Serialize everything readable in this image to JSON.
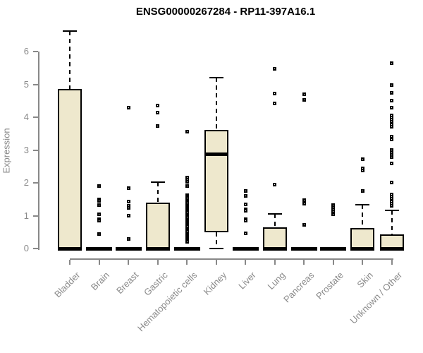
{
  "title": "ENSG00000267284 - RP11-397A16.1",
  "chart_data": {
    "type": "box",
    "title": "ENSG00000267284 - RP11-397A16.1",
    "xlabel": "",
    "ylabel": "Expression",
    "ylim": [
      0,
      6.8
    ],
    "yticks": [
      0,
      1,
      2,
      3,
      4,
      5,
      6
    ],
    "grid": false,
    "legend": "none",
    "box_fill_color": "#EEE8CD",
    "box_stroke_color": "#000000",
    "axis_color": "#888888",
    "tick_label_color": "#8a8a8a",
    "categories": [
      "Bladder",
      "Brain",
      "Breast",
      "Gastric",
      "Hematopoietic cells",
      "Kidney",
      "Liver",
      "Lung",
      "Pancreas",
      "Prostate",
      "Skin",
      "Unknown / Other"
    ],
    "series": [
      {
        "name": "Bladder",
        "q1": 0,
        "median": 0,
        "q3": 4.85,
        "whisker_low": 0,
        "whisker_high": 6.62,
        "outliers": []
      },
      {
        "name": "Brain",
        "q1": 0,
        "median": 0,
        "q3": 0,
        "whisker_low": 0,
        "whisker_high": 0,
        "outliers": [
          1.9,
          1.5,
          1.45,
          1.33,
          1.05,
          0.9,
          0.86,
          0.45
        ]
      },
      {
        "name": "Breast",
        "q1": 0,
        "median": 0,
        "q3": 0,
        "whisker_low": 0,
        "whisker_high": 0,
        "outliers": [
          4.3,
          1.83,
          1.44,
          1.31,
          1.23,
          1.01,
          0.3
        ]
      },
      {
        "name": "Gastric",
        "q1": 0,
        "median": 0,
        "q3": 1.4,
        "whisker_low": 0,
        "whisker_high": 2.02,
        "outliers": [
          4.36,
          4.15,
          3.74
        ]
      },
      {
        "name": "Hematopoietic cells",
        "q1": 0,
        "median": 0,
        "q3": 0,
        "whisker_low": 0,
        "whisker_high": 0,
        "outliers": [
          3.55,
          2.16,
          2.1,
          2.04,
          1.9,
          1.62,
          1.57,
          1.53,
          1.48,
          1.43,
          1.38,
          1.33,
          1.29,
          1.24,
          1.19,
          1.14,
          1.1,
          1.05,
          1.0,
          0.95,
          0.9,
          0.86,
          0.81,
          0.76,
          0.71,
          0.67,
          0.62,
          0.57,
          0.52,
          0.47,
          0.43,
          0.38,
          0.33,
          0.28,
          0.24,
          0.2
        ]
      },
      {
        "name": "Kidney",
        "q1": 0.5,
        "median": 2.88,
        "q3": 3.62,
        "whisker_low": 0,
        "whisker_high": 5.2,
        "outliers": []
      },
      {
        "name": "Liver",
        "q1": 0,
        "median": 0,
        "q3": 0,
        "whisker_low": 0,
        "whisker_high": 0,
        "outliers": [
          1.76,
          1.6,
          1.35,
          1.2,
          1.14,
          0.9,
          0.85,
          0.47
        ]
      },
      {
        "name": "Lung",
        "q1": 0,
        "median": 0,
        "q3": 0.65,
        "whisker_low": 0,
        "whisker_high": 1.05,
        "outliers": [
          5.48,
          4.72,
          4.42,
          1.95
        ]
      },
      {
        "name": "Pancreas",
        "q1": 0,
        "median": 0,
        "q3": 0,
        "whisker_low": 0,
        "whisker_high": 0,
        "outliers": [
          4.7,
          4.53,
          1.48,
          1.37,
          0.73
        ]
      },
      {
        "name": "Prostate",
        "q1": 0,
        "median": 0,
        "q3": 0,
        "whisker_low": 0,
        "whisker_high": 0,
        "outliers": [
          1.33,
          1.26,
          1.19,
          1.12,
          1.04
        ]
      },
      {
        "name": "Skin",
        "q1": 0,
        "median": 0,
        "q3": 0.63,
        "whisker_low": 0,
        "whisker_high": 1.33,
        "outliers": [
          2.73,
          2.45,
          2.38,
          1.76
        ]
      },
      {
        "name": "Unknown / Other",
        "q1": 0,
        "median": 0,
        "q3": 0.44,
        "whisker_low": 0,
        "whisker_high": 1.17,
        "outliers": [
          5.65,
          4.98,
          4.75,
          4.51,
          4.3,
          4.06,
          3.99,
          3.92,
          3.85,
          3.78,
          3.7,
          3.4,
          3.33,
          2.99,
          2.92,
          2.85,
          2.78,
          2.6,
          2.02,
          1.65,
          1.58,
          1.51,
          1.44,
          1.37,
          1.3
        ]
      }
    ]
  }
}
